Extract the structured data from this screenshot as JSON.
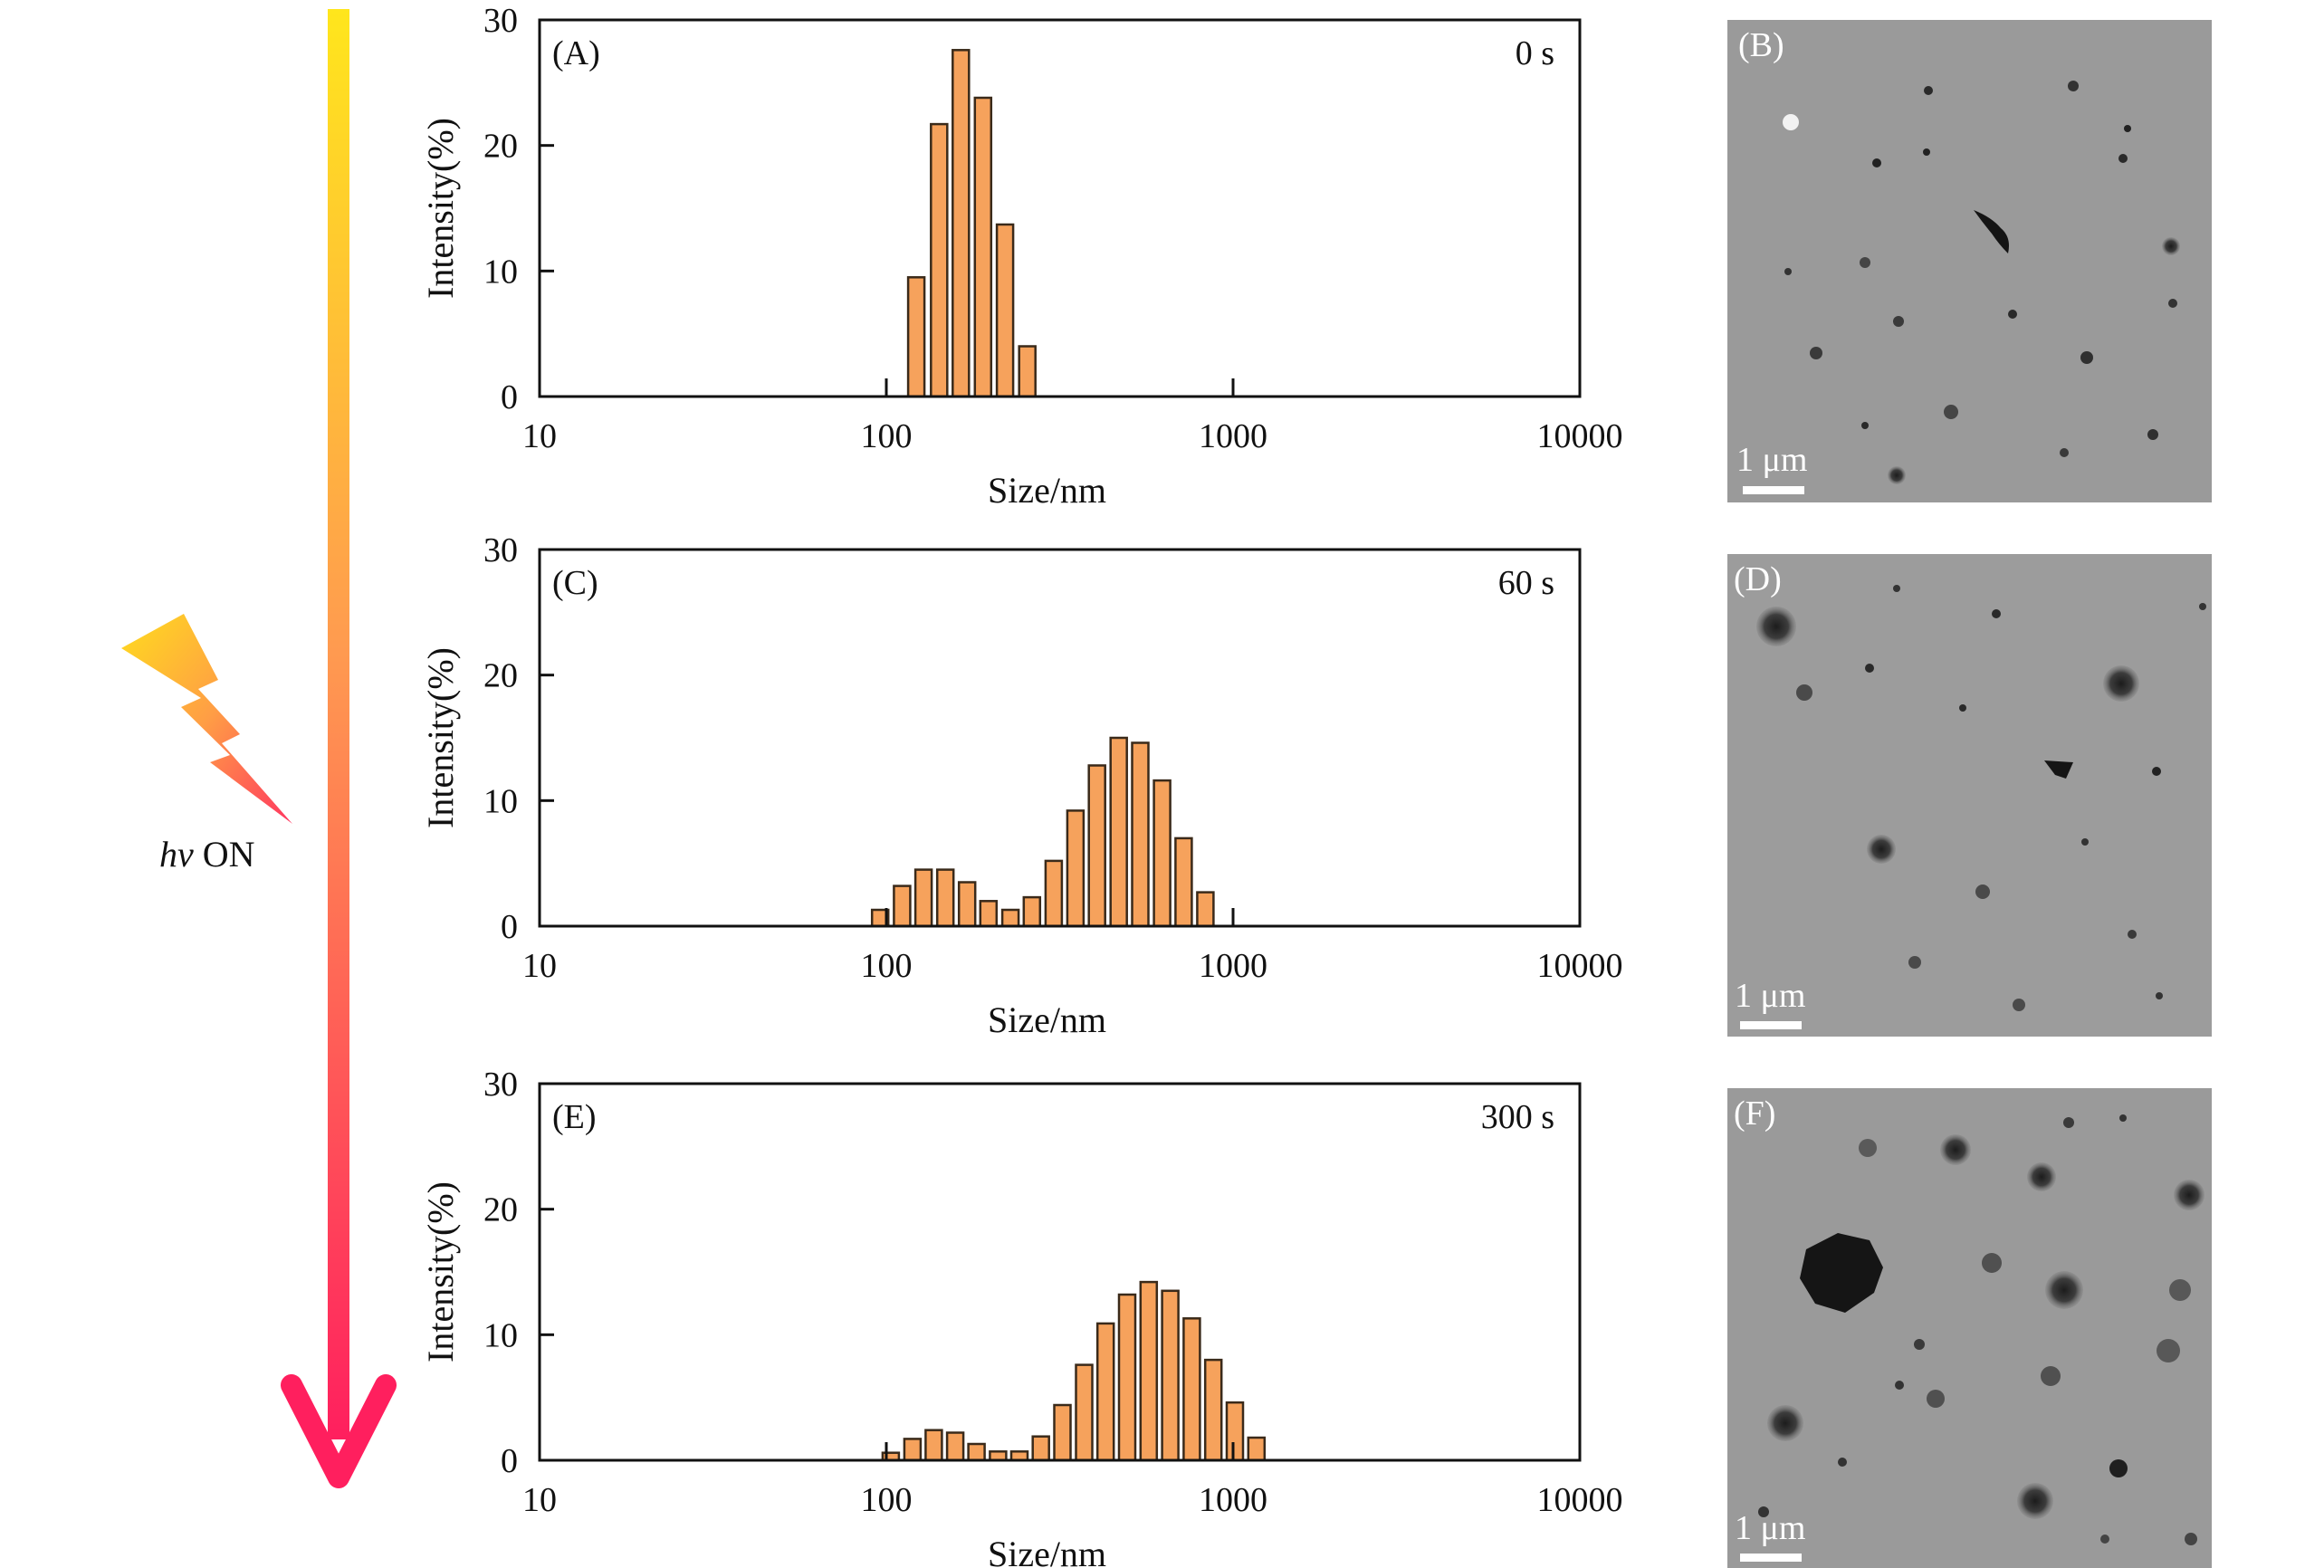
{
  "figure": {
    "arrow_label_italic": "hv",
    "arrow_label_rest": " ON",
    "arrow_gradient": [
      "#ffe61c",
      "#ff9a50",
      "#ff1f5e"
    ],
    "bar_color": "#f6a25c",
    "micrograph_bg": "#9a9a9a"
  },
  "chart_data": [
    {
      "type": "bar",
      "panel": "(A)",
      "time": "0 s",
      "xscale": "log",
      "xlim": [
        10,
        10000
      ],
      "ylim": [
        0,
        30
      ],
      "xticks": [
        "10",
        "100",
        "1000",
        "10000"
      ],
      "yticks": [
        "0",
        "10",
        "20",
        "30"
      ],
      "xlabel": "Size/nm",
      "ylabel": "Intensity(%)",
      "x": [
        122,
        142,
        164,
        190,
        220,
        255
      ],
      "values": [
        9.5,
        21.7,
        27.6,
        23.8,
        13.7,
        4.0
      ]
    },
    {
      "type": "bar",
      "panel": "(C)",
      "time": "60 s",
      "xscale": "log",
      "xlim": [
        10,
        10000
      ],
      "ylim": [
        0,
        30
      ],
      "xticks": [
        "10",
        "100",
        "1000",
        "10000"
      ],
      "yticks": [
        "0",
        "10",
        "20",
        "30"
      ],
      "xlabel": "Size/nm",
      "ylabel": "Intensity(%)",
      "x": [
        96,
        111,
        128,
        148,
        171,
        197,
        228,
        263,
        304,
        351,
        405,
        468,
        540,
        624,
        720,
        832
      ],
      "values": [
        1.3,
        3.2,
        4.5,
        4.5,
        3.5,
        2.0,
        1.3,
        2.3,
        5.2,
        9.2,
        12.8,
        15.0,
        14.6,
        11.6,
        7.0,
        2.7
      ]
    },
    {
      "type": "bar",
      "panel": "(E)",
      "time": "300 s",
      "xscale": "log",
      "xlim": [
        10,
        10000
      ],
      "ylim": [
        0,
        30
      ],
      "xticks": [
        "10",
        "100",
        "1000",
        "10000"
      ],
      "yticks": [
        "0",
        "10",
        "20",
        "30"
      ],
      "xlabel": "Size/nm",
      "ylabel": "Intensity(%)",
      "x": [
        103,
        119,
        137,
        158,
        182,
        210,
        242,
        279,
        322,
        372,
        429,
        495,
        571,
        659,
        760,
        877,
        1012,
        1168
      ],
      "values": [
        0.6,
        1.7,
        2.4,
        2.2,
        1.3,
        0.7,
        0.7,
        1.9,
        4.4,
        7.6,
        10.9,
        13.2,
        14.2,
        13.5,
        11.3,
        8.0,
        4.6,
        1.8
      ]
    }
  ],
  "micrographs": [
    {
      "panel": "(B)",
      "scale": "1 μm"
    },
    {
      "panel": "(D)",
      "scale": "1 μm"
    },
    {
      "panel": "(F)",
      "scale": "1 μm"
    }
  ]
}
